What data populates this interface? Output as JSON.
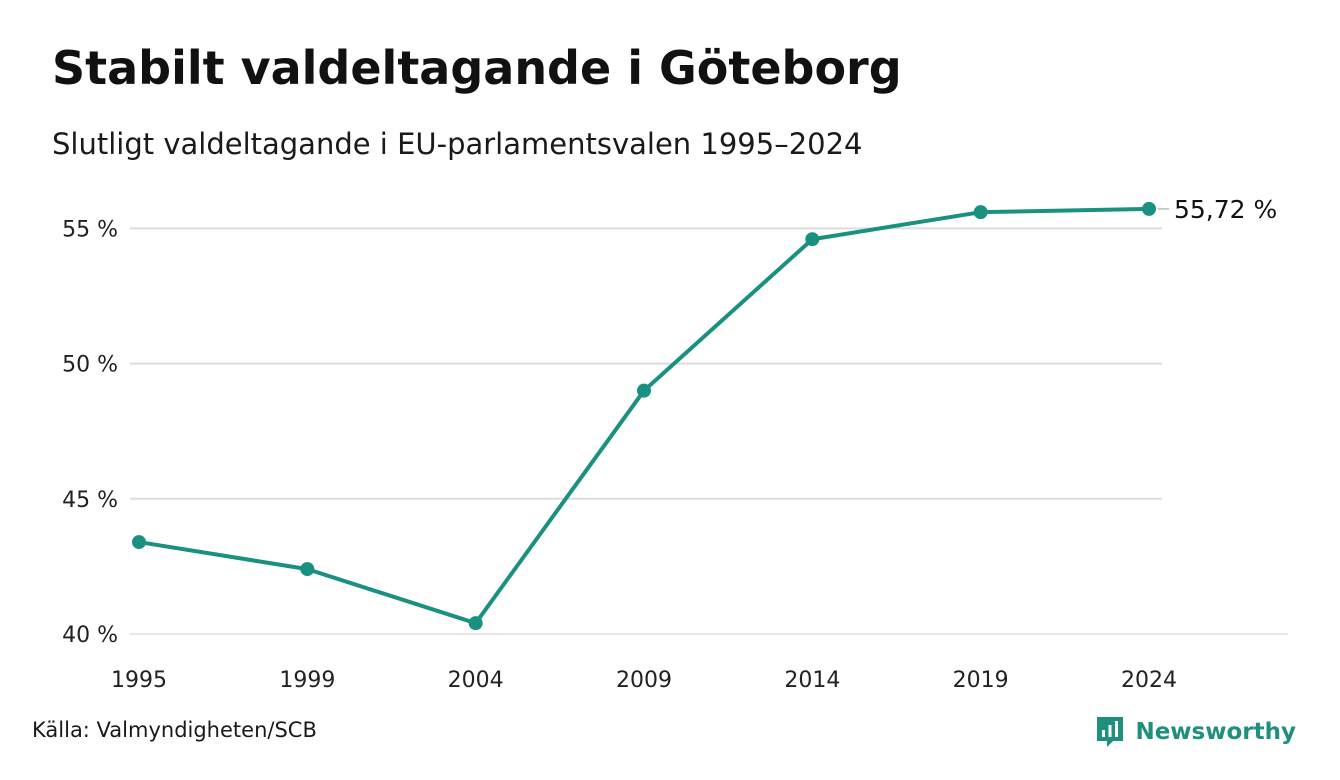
{
  "header": {
    "title": "Stabilt valdeltagande i Göteborg",
    "subtitle": "Slutligt valdeltagande i EU-parlamentsvalen 1995–2024"
  },
  "chart_data": {
    "type": "line",
    "title": "Stabilt valdeltagande i Göteborg",
    "subtitle": "Slutligt valdeltagande i EU-parlamentsvalen 1995–2024",
    "xlabel": "",
    "ylabel": "",
    "categories": [
      "1995",
      "1999",
      "2004",
      "2009",
      "2014",
      "2019",
      "2024"
    ],
    "series": [
      {
        "values": [
          43.4,
          42.4,
          40.4,
          49.0,
          54.6,
          55.6,
          55.72
        ]
      }
    ],
    "y_ticks": [
      40,
      45,
      50,
      55
    ],
    "y_tick_labels": [
      "40 %",
      "45 %",
      "50 %",
      "55 %"
    ],
    "ylim": [
      40,
      57
    ],
    "end_label": "55,72 %",
    "grid": true,
    "legend": "none",
    "colors": {
      "line": "#1a9180",
      "grid": "#dddddd"
    }
  },
  "footer": {
    "source": "Källa: Valmyndigheten/SCB",
    "brand": "Newsworthy",
    "brand_icon": "newsworthy-logo-icon",
    "brand_color": "#1f8f7e"
  }
}
